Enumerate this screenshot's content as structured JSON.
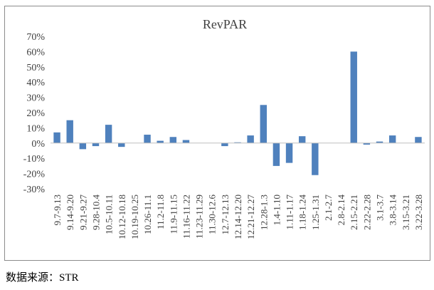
{
  "chart_data": {
    "type": "bar",
    "title": "RevPAR",
    "xlabel": "",
    "ylabel": "",
    "ylim": [
      -30,
      70
    ],
    "yticks": [
      -30,
      -20,
      -10,
      0,
      10,
      20,
      30,
      40,
      50,
      60,
      70
    ],
    "ytick_labels": [
      "-30%",
      "-20%",
      "-10%",
      "0%",
      "10%",
      "20%",
      "30%",
      "40%",
      "50%",
      "60%",
      "70%"
    ],
    "grid": false,
    "legend": "none",
    "bar_color": "#4f81bd",
    "categories": [
      "9.7-9.13",
      "9.14-9.20",
      "9.21-9.27",
      "9.28-10.4",
      "10.5-10.11",
      "10.12-10.18",
      "10.19-10.25",
      "10.26-11.1",
      "11.2-11.8",
      "11.9-11.15",
      "11.16-11.22",
      "11.23-11.29",
      "11.30-12.6",
      "12.7-12.13",
      "12.14-12.20",
      "12.21-12.27",
      "12.28-1.3",
      "1.4-1.10",
      "1.11-1.17",
      "1.18-1.24",
      "1.25-1.31",
      "2.1-2.7",
      "2.8-2.14",
      "2.15-2.21",
      "2.22-2.28",
      "3.1-3.7",
      "3.8-3.14",
      "3.15-3.21",
      "3.22-3.28"
    ],
    "values": [
      7,
      15,
      -4,
      -2,
      12,
      -2.5,
      0,
      5.5,
      1.5,
      4,
      2,
      0,
      0,
      -2,
      0.5,
      5,
      25,
      -15,
      -13,
      4.5,
      -21,
      0,
      0,
      60,
      -1,
      1,
      5,
      0,
      4
    ]
  },
  "source_note": {
    "label": "数据来源",
    "separator": "：",
    "value": "STR"
  }
}
